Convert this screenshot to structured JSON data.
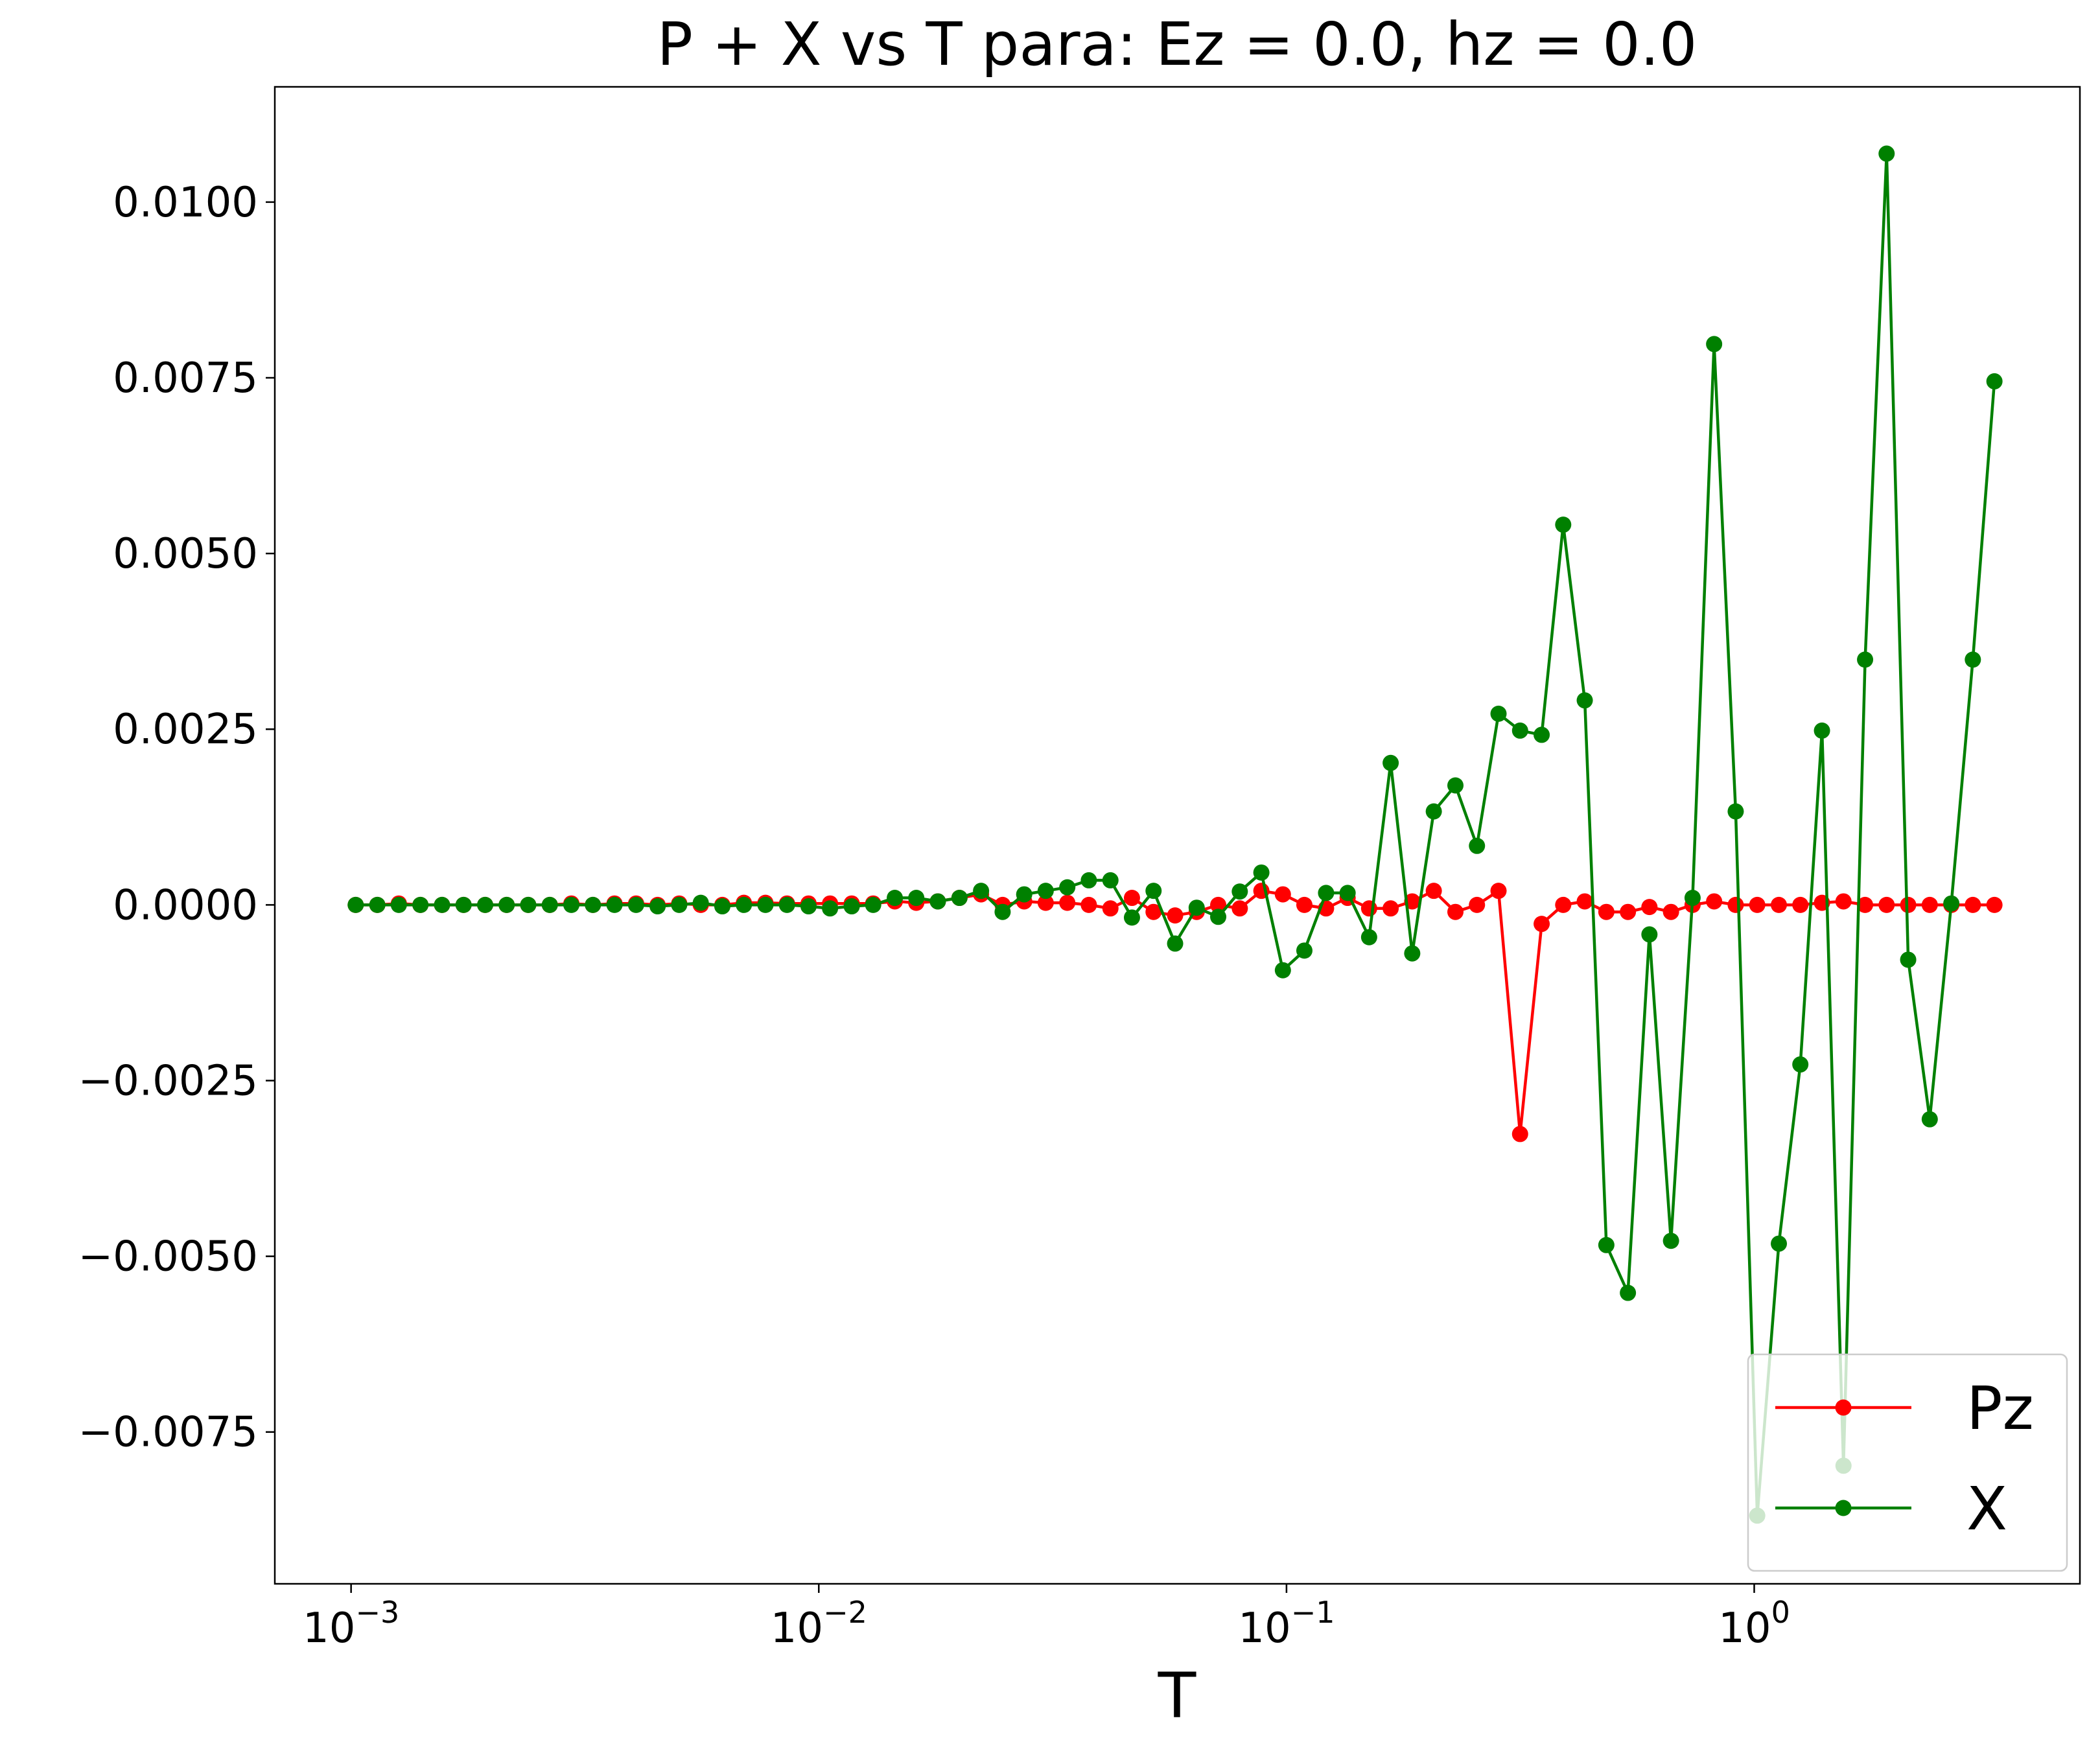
{
  "chart_data": {
    "type": "line",
    "title": "P + X vs T para: Ez = 0.0, hz = 0.0",
    "x_label": "T",
    "xscale": "log",
    "legend": "lower right",
    "x": [
      0.001023,
      0.001138,
      0.001265,
      0.001407,
      0.001565,
      0.00174,
      0.001935,
      0.002151,
      0.002392,
      0.00266,
      0.002958,
      0.003289,
      0.003658,
      0.004068,
      0.004523,
      0.00503,
      0.005593,
      0.00622,
      0.006916,
      0.007691,
      0.008551,
      0.009509,
      0.01057,
      0.01176,
      0.01307,
      0.01454,
      0.01616,
      0.01797,
      0.01999,
      0.02223,
      0.02472,
      0.02749,
      0.03056,
      0.03399,
      0.03779,
      0.04203,
      0.04673,
      0.05197,
      0.05779,
      0.06426,
      0.07145,
      0.07946,
      0.08836,
      0.09824,
      0.1092,
      0.1215,
      0.1351,
      0.1502,
      0.167,
      0.1857,
      0.2065,
      0.2297,
      0.2554,
      0.284,
      0.3158,
      0.3512,
      0.3905,
      0.4342,
      0.4829,
      0.537,
      0.597,
      0.6639,
      0.7383,
      0.8209,
      0.9129,
      1.015,
      1.129,
      1.255,
      1.396,
      1.552,
      1.726,
      1.919,
      2.134,
      2.373,
      2.639,
      2.934,
      3.263
    ],
    "series": [
      {
        "name": "Pz",
        "color": "#ff0000",
        "values": [
          0,
          0,
          2e-05,
          0,
          0,
          0,
          0,
          0,
          0,
          0,
          2e-05,
          0,
          2e-05,
          2e-05,
          0,
          2e-05,
          0,
          0,
          3e-05,
          3e-05,
          2e-05,
          2e-05,
          2e-05,
          2e-05,
          2e-05,
          5e-05,
          3e-05,
          5e-05,
          0.0001,
          0.00015,
          0,
          5e-05,
          3e-05,
          3e-05,
          0,
          -5e-05,
          0.0001,
          -0.0001,
          -0.00015,
          -0.0001,
          0,
          -5e-05,
          0.0002,
          0.00015,
          0,
          -5e-05,
          0.0001,
          -5e-05,
          -5e-05,
          5e-05,
          0.0002,
          -0.0001,
          0,
          0.0002,
          -0.00326,
          -0.00027,
          0,
          5e-05,
          -0.0001,
          -0.0001,
          -3e-05,
          -0.0001,
          0,
          5e-05,
          0,
          0,
          0,
          0,
          3e-05,
          5e-05,
          0,
          0,
          0,
          0,
          0,
          0,
          0
        ]
      },
      {
        "name": "X",
        "color": "#008000",
        "values": [
          0,
          0,
          0,
          0,
          0,
          0,
          0,
          0,
          0,
          0,
          0,
          0,
          0,
          0,
          -2e-05,
          0,
          3e-05,
          -2e-05,
          0,
          0,
          0,
          -2e-05,
          -5e-05,
          -2e-05,
          0,
          0.0001,
          0.0001,
          5e-05,
          0.0001,
          0.0002,
          -0.0001,
          0.00015,
          0.0002,
          0.00025,
          0.00035,
          0.00035,
          -0.00018,
          0.0002,
          -0.00055,
          -4e-05,
          -0.00017,
          0.00019,
          0.00046,
          -0.00093,
          -0.00065,
          0.00017,
          0.00017,
          -0.00046,
          0.00202,
          -0.00069,
          0.00133,
          0.0017,
          0.00084,
          0.00272,
          0.00248,
          0.00242,
          0.00541,
          0.00291,
          -0.00484,
          -0.00552,
          -0.00042,
          -0.00478,
          0.0001,
          0.00798,
          0.00133,
          -0.00869,
          -0.00482,
          -0.00227,
          0.00248,
          -0.00798,
          0.00349,
          0.01069,
          -0.00078,
          -0.00305,
          2e-05,
          0.00349,
          0.00745
        ]
      }
    ],
    "xlim": [
      0.000687,
      4.97
    ],
    "xticks": [
      {
        "value": 0.001,
        "label": "10",
        "exponent": "−3"
      },
      {
        "value": 0.01,
        "label": "10",
        "exponent": "−2"
      },
      {
        "value": 0.1,
        "label": "10",
        "exponent": "−1"
      },
      {
        "value": 1,
        "label": "10",
        "exponent": "0"
      }
    ],
    "ylim": [
      -0.00966,
      0.01164
    ],
    "yticks": [
      {
        "value": -0.0075,
        "label": "−0.0075"
      },
      {
        "value": -0.005,
        "label": "−0.0050"
      },
      {
        "value": -0.0025,
        "label": "−0.0025"
      },
      {
        "value": 0,
        "label": "0.0000"
      },
      {
        "value": 0.0025,
        "label": "0.0025"
      },
      {
        "value": 0.005,
        "label": "0.0050"
      },
      {
        "value": 0.0075,
        "label": "0.0075"
      },
      {
        "value": 0.01,
        "label": "0.0100"
      }
    ]
  }
}
